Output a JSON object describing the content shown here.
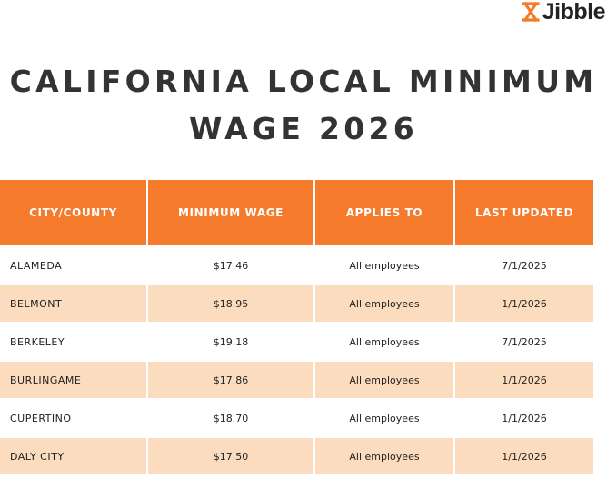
{
  "header": {
    "brand": "Jibble",
    "title_lines": [
      "CALIFORNIA LOCAL MINIMUM",
      "WAGE 2026"
    ]
  },
  "table": {
    "columns": [
      "CITY/COUNTY",
      "MINIMUM WAGE",
      "APPLIES TO",
      "LAST UPDATED"
    ],
    "rows": [
      [
        "ALAMEDA",
        "$17.46",
        "All employees",
        "7/1/2025"
      ],
      [
        "BELMONT",
        "$18.95",
        "All employees",
        "1/1/2026"
      ],
      [
        "BERKELEY",
        "$19.18",
        "All employees",
        "7/1/2025"
      ],
      [
        "BURLINGAME",
        "$17.86",
        "All employees",
        "1/1/2026"
      ],
      [
        "CUPERTINO",
        "$18.70",
        "All employees",
        "1/1/2026"
      ],
      [
        "DALY CITY",
        "$17.50",
        "All employees",
        "1/1/2026"
      ]
    ]
  }
}
